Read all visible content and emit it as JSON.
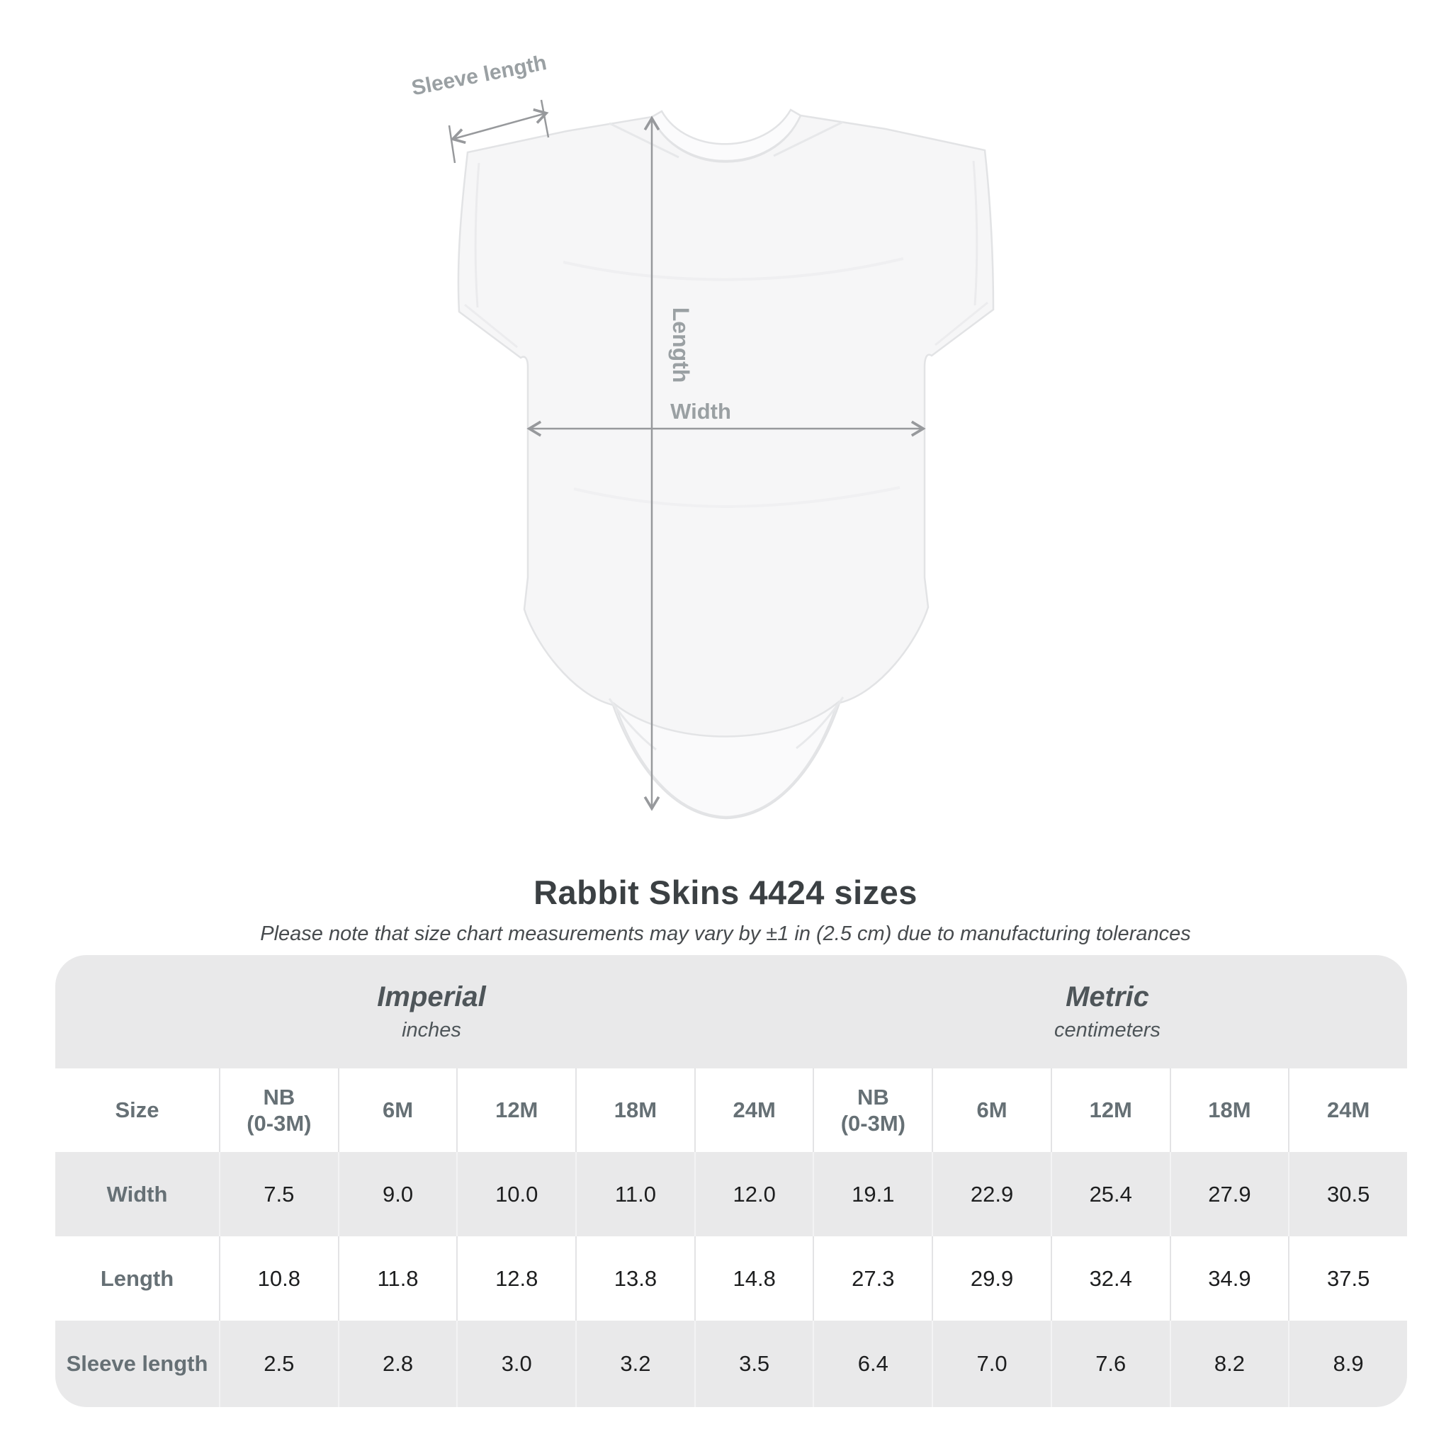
{
  "diagram": {
    "labels": {
      "sleeve_length": "Sleeve length",
      "length": "Length",
      "width": "Width"
    },
    "annotation_color": "#9aa0a3",
    "garment": "infant-bodysuit-onesie"
  },
  "title": "Rabbit Skins 4424 sizes",
  "subtitle": "Please note that size chart measurements may vary by ±1 in (2.5 cm) due to manufacturing tolerances",
  "table": {
    "unit_groups": [
      {
        "name": "Imperial",
        "unit": "inches"
      },
      {
        "name": "Metric",
        "unit": "centimeters"
      }
    ],
    "size_header": "Size",
    "columns": [
      "NB\n(0-3M)",
      "6M",
      "12M",
      "18M",
      "24M",
      "NB\n(0-3M)",
      "6M",
      "12M",
      "18M",
      "24M"
    ],
    "rows": [
      {
        "label": "Width",
        "values": [
          "7.5",
          "9.0",
          "10.0",
          "11.0",
          "12.0",
          "19.1",
          "22.9",
          "25.4",
          "27.9",
          "30.5"
        ]
      },
      {
        "label": "Length",
        "values": [
          "10.8",
          "11.8",
          "12.8",
          "13.8",
          "14.8",
          "27.3",
          "29.9",
          "32.4",
          "34.9",
          "37.5"
        ]
      },
      {
        "label": "Sleeve length",
        "values": [
          "2.5",
          "2.8",
          "3.0",
          "3.2",
          "3.5",
          "6.4",
          "7.0",
          "7.6",
          "8.2",
          "8.9"
        ]
      }
    ]
  },
  "colors": {
    "table_band_gray": "#e9e9ea",
    "row_gray": "#e9e9ea",
    "header_text": "#667075",
    "value_text": "#1d1e1f",
    "title_text": "#3b4043",
    "annotation_gray": "#9aa0a3"
  },
  "chart_data": {
    "type": "table",
    "title": "Rabbit Skins 4424 sizes",
    "note": "Please note that size chart measurements may vary by ±1 in (2.5 cm) due to manufacturing tolerances",
    "unit_groups": [
      "Imperial (inches)",
      "Metric (centimeters)"
    ],
    "sizes": [
      "NB (0-3M)",
      "6M",
      "12M",
      "18M",
      "24M"
    ],
    "imperial_inches": {
      "Width": [
        7.5,
        9.0,
        10.0,
        11.0,
        12.0
      ],
      "Length": [
        10.8,
        11.8,
        12.8,
        13.8,
        14.8
      ],
      "Sleeve length": [
        2.5,
        2.8,
        3.0,
        3.2,
        3.5
      ]
    },
    "metric_centimeters": {
      "Width": [
        19.1,
        22.9,
        25.4,
        27.9,
        30.5
      ],
      "Length": [
        27.3,
        29.9,
        32.4,
        34.9,
        37.5
      ],
      "Sleeve length": [
        6.4,
        7.0,
        7.6,
        8.2,
        8.9
      ]
    }
  }
}
